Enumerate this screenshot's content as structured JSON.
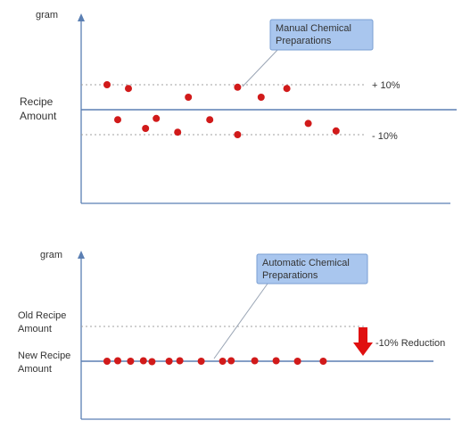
{
  "colors": {
    "axis": "#5b7fb3",
    "baseline": "#5b7fb3",
    "dotted": "#a0a0a0",
    "point": "#d11a1a",
    "callout_fill": "#a9c6ee",
    "callout_border": "#7a9fd3",
    "arrow": "#e01010"
  },
  "chart_data": [
    {
      "type": "scatter",
      "ylabel_unit": "gram",
      "y_reference_label": "Recipe Amount",
      "band_labels": {
        "upper": "+ 10%",
        "lower": "- 10%"
      },
      "callout": "Manual Chemical Preparations",
      "ylim": [
        -1.6,
        1.6
      ],
      "xlim": [
        0,
        17
      ],
      "grid": false,
      "points": [
        {
          "x": 1.0,
          "y": 1.0
        },
        {
          "x": 1.5,
          "y": -0.4
        },
        {
          "x": 2.0,
          "y": 0.85
        },
        {
          "x": 2.8,
          "y": -0.75
        },
        {
          "x": 3.3,
          "y": -0.35
        },
        {
          "x": 4.3,
          "y": -0.9
        },
        {
          "x": 4.8,
          "y": 0.5
        },
        {
          "x": 5.8,
          "y": -0.4
        },
        {
          "x": 7.1,
          "y": 0.9
        },
        {
          "x": 7.1,
          "y": -1.0
        },
        {
          "x": 8.2,
          "y": 0.5
        },
        {
          "x": 9.4,
          "y": 0.85
        },
        {
          "x": 10.4,
          "y": -0.55
        },
        {
          "x": 11.7,
          "y": -0.85
        }
      ]
    },
    {
      "type": "scatter",
      "ylabel_unit": "gram",
      "y_reference_labels": {
        "old": "Old Recipe Amount",
        "new": "New Recipe Amount"
      },
      "reduction_label": "-10% Reduction",
      "callout": "Automatic Chemical Preparations",
      "ylim": [
        -2.5,
        3.5
      ],
      "xlim": [
        0,
        17
      ],
      "grid": false,
      "points": [
        {
          "x": 1.0,
          "y": 0.0
        },
        {
          "x": 1.5,
          "y": 0.05
        },
        {
          "x": 2.1,
          "y": 0.0
        },
        {
          "x": 2.7,
          "y": 0.05
        },
        {
          "x": 3.1,
          "y": -0.05
        },
        {
          "x": 3.9,
          "y": 0.0
        },
        {
          "x": 4.4,
          "y": 0.05
        },
        {
          "x": 5.4,
          "y": 0.0
        },
        {
          "x": 6.4,
          "y": 0.0
        },
        {
          "x": 6.8,
          "y": 0.05
        },
        {
          "x": 7.9,
          "y": 0.05
        },
        {
          "x": 8.9,
          "y": 0.05
        },
        {
          "x": 9.9,
          "y": 0.0
        },
        {
          "x": 11.1,
          "y": 0.0
        }
      ]
    }
  ]
}
